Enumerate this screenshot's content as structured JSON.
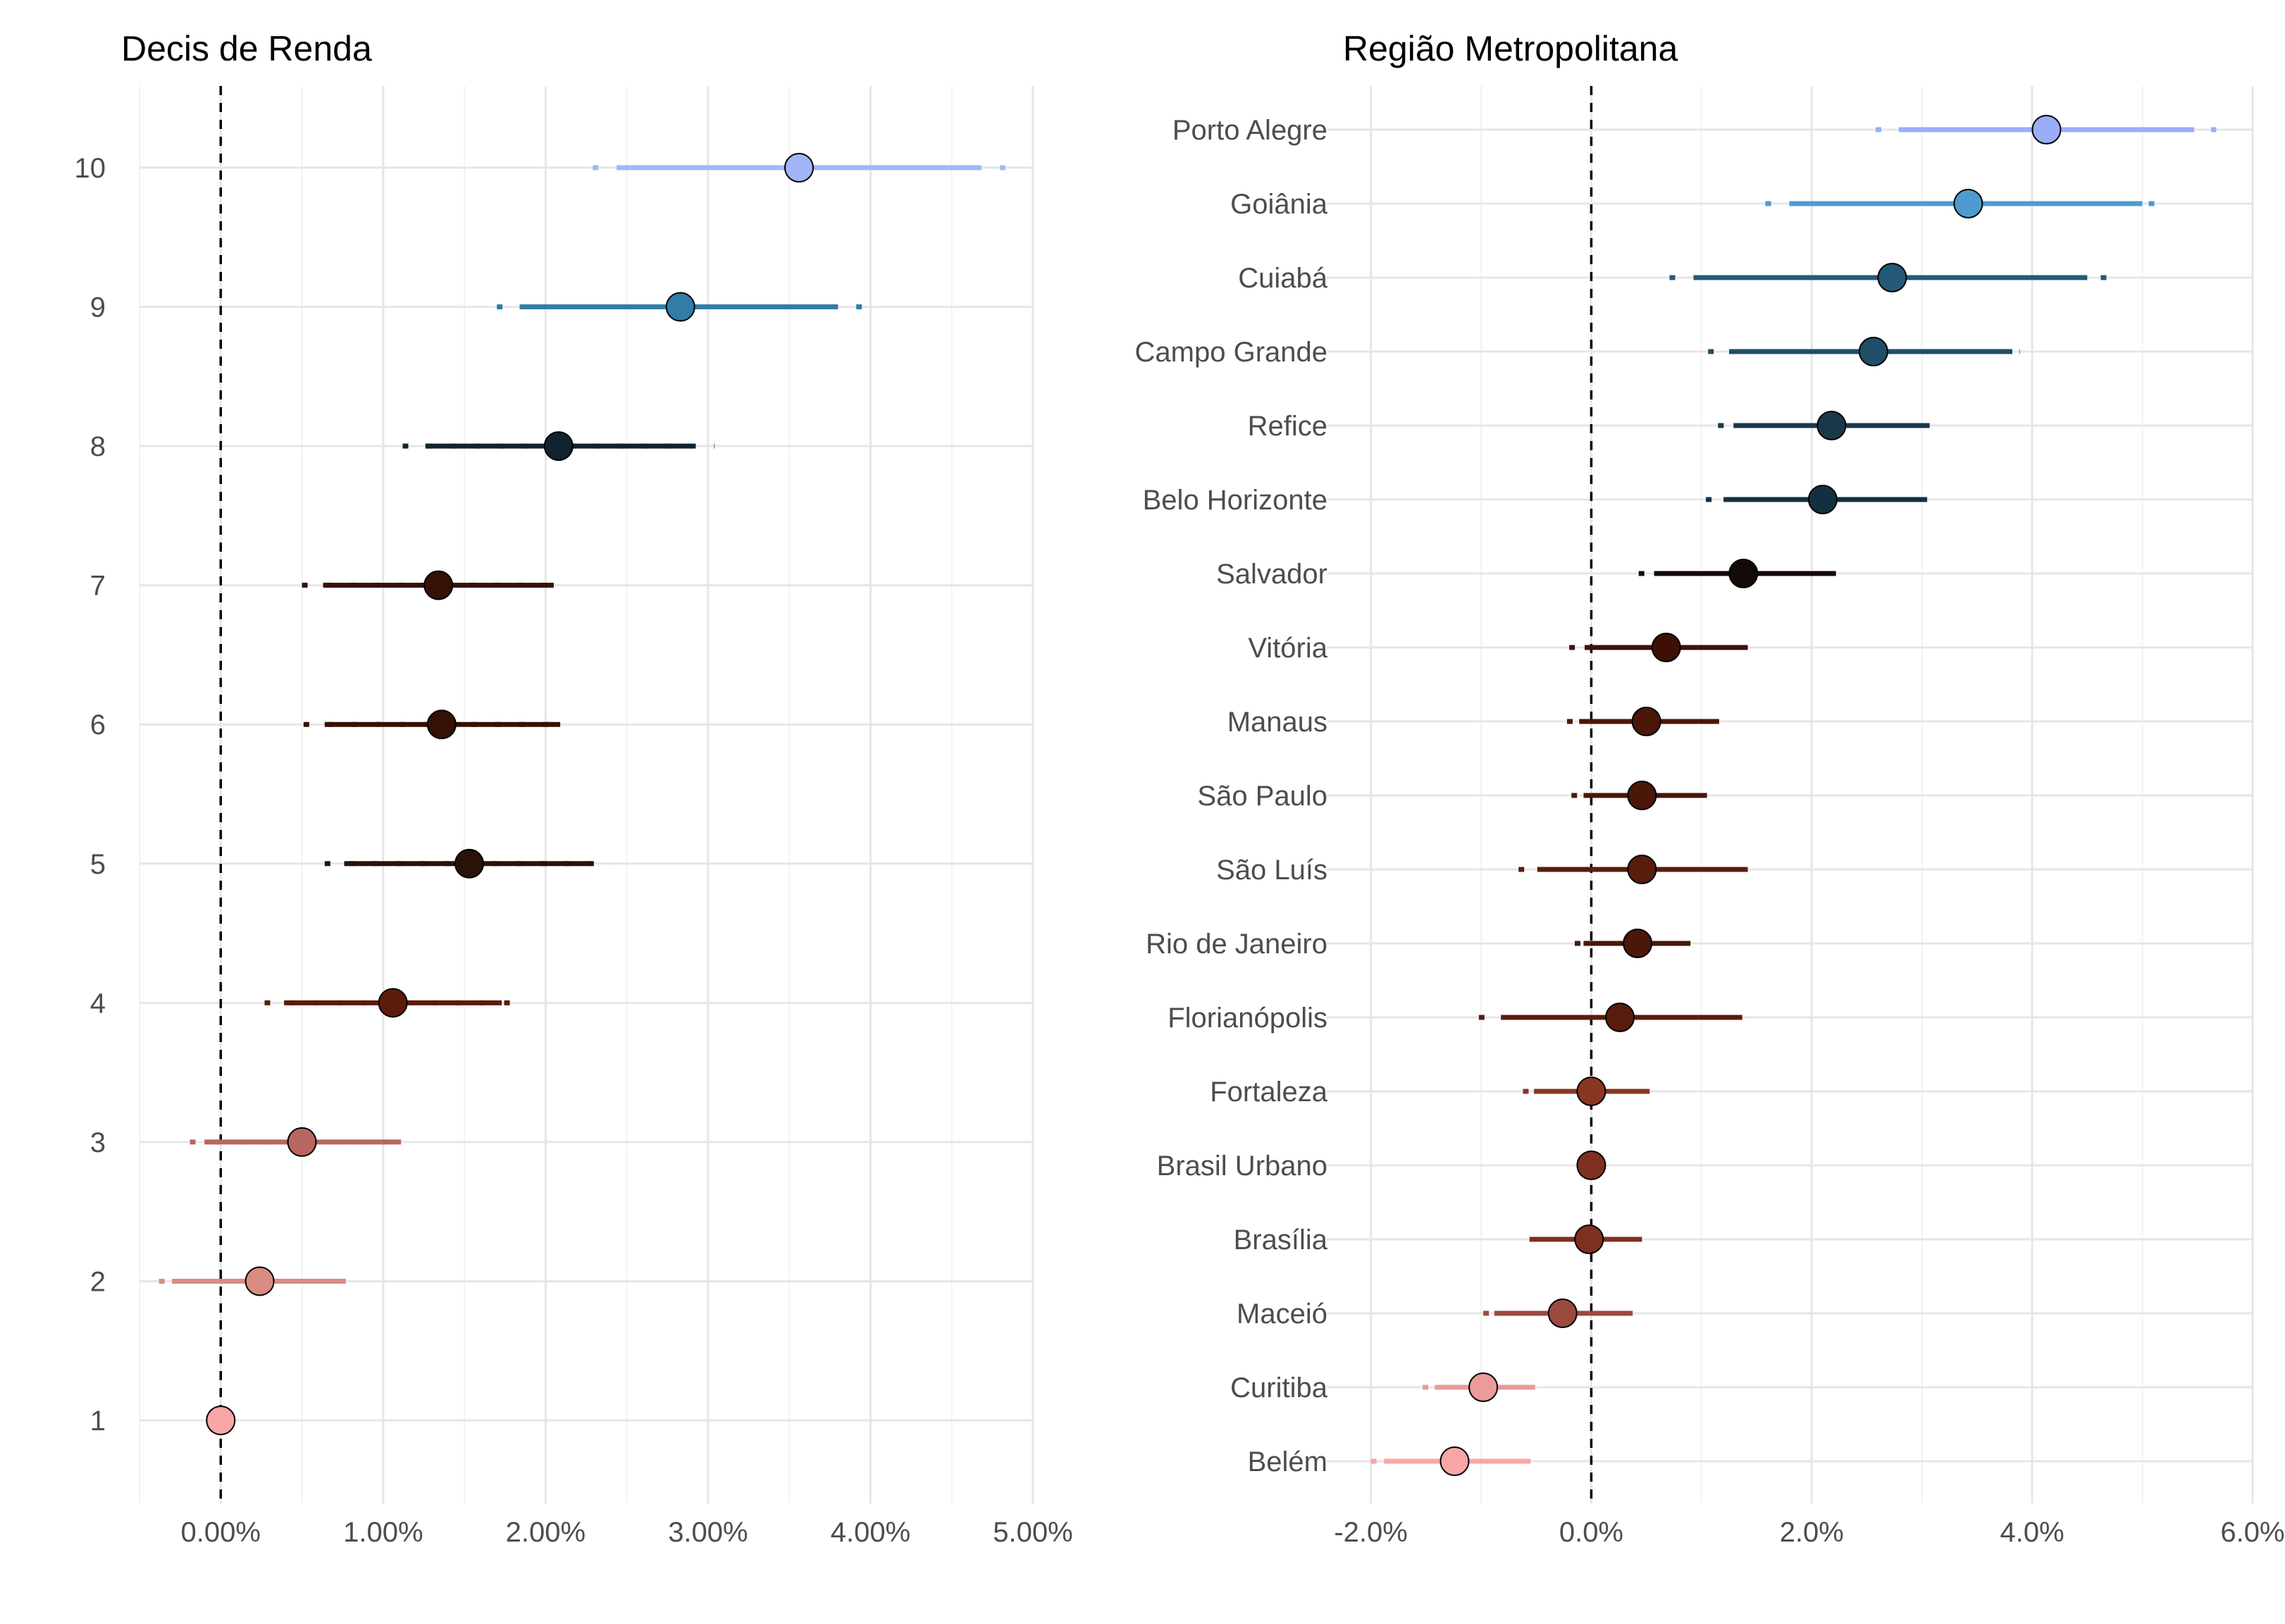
{
  "chart_data": [
    {
      "type": "dot-interval",
      "title": "Decis de Renda",
      "xlabel": "",
      "ylabel": "",
      "xlim": [
        -0.5,
        5.0
      ],
      "x_ticks": [
        0,
        1,
        2,
        3,
        4,
        5
      ],
      "x_tick_labels": [
        "0.00%",
        "1.00%",
        "2.00%",
        "3.00%",
        "4.00%",
        "5.00%"
      ],
      "reference_line": 0,
      "grid": true,
      "legend": "none",
      "categories": [
        "1",
        "2",
        "3",
        "4",
        "5",
        "6",
        "7",
        "8",
        "9",
        "10"
      ],
      "estimates": [
        0.0,
        0.24,
        0.5,
        1.06,
        1.53,
        1.36,
        1.34,
        2.08,
        2.83,
        3.56
      ],
      "ci95": [
        [
          0.0,
          0.0
        ],
        [
          -0.38,
          0.77
        ],
        [
          -0.19,
          1.11
        ],
        [
          0.27,
          1.86
        ],
        [
          0.64,
          2.41
        ],
        [
          0.51,
          2.13
        ],
        [
          0.5,
          2.11
        ],
        [
          1.12,
          3.04
        ],
        [
          1.7,
          3.96
        ],
        [
          2.29,
          4.83
        ]
      ],
      "ci90": [
        [
          0.0,
          0.0
        ],
        [
          -0.3,
          0.77
        ],
        [
          -0.1,
          1.11
        ],
        [
          0.39,
          1.73
        ],
        [
          0.76,
          2.28
        ],
        [
          0.64,
          2.09
        ],
        [
          0.63,
          2.05
        ],
        [
          1.26,
          2.9
        ],
        [
          1.84,
          3.8
        ],
        [
          2.44,
          4.66
        ]
      ],
      "colors": [
        "#f8a6a6",
        "#d98c82",
        "#b86660",
        "#5c1a0a",
        "#2a1109",
        "#351005",
        "#351005",
        "#0f2330",
        "#2f7da8",
        "#a2b6f7"
      ]
    },
    {
      "type": "dot-interval",
      "title": "Região Metropolitana",
      "xlabel": "",
      "ylabel": "",
      "xlim": [
        -2.4,
        6.0
      ],
      "x_ticks": [
        -2,
        0,
        2,
        4,
        6
      ],
      "x_tick_labels": [
        "-2.0%",
        "0.0%",
        "2.0%",
        "4.0%",
        "6.0%"
      ],
      "reference_line": 0,
      "grid": true,
      "legend": "none",
      "categories": [
        "Belém",
        "Curitiba",
        "Maceió",
        "Brasília",
        "Brasil Urbano",
        "Fortaleza",
        "Florianópolis",
        "Rio de Janeiro",
        "São Luís",
        "São Paulo",
        "Manaus",
        "Vitória",
        "Salvador",
        "Belo Horizonte",
        "Refice",
        "Campo Grande",
        "Cuiabá",
        "Goiânia",
        "Porto Alegre"
      ],
      "estimates": [
        -1.24,
        -0.98,
        -0.26,
        -0.02,
        0.0,
        0.0,
        0.26,
        0.42,
        0.46,
        0.46,
        0.5,
        0.68,
        1.38,
        2.1,
        2.18,
        2.56,
        2.73,
        3.42,
        4.13
      ],
      "ci95": [
        [
          -2.0,
          -0.55
        ],
        [
          -1.53,
          -0.51
        ],
        [
          -0.98,
          0.44
        ],
        [
          -0.56,
          0.46
        ],
        [
          0.0,
          0.0
        ],
        [
          -0.62,
          0.59
        ],
        [
          -1.02,
          1.37
        ],
        [
          -0.15,
          0.9
        ],
        [
          -0.66,
          1.48
        ],
        [
          -0.18,
          1.05
        ],
        [
          -0.22,
          1.2
        ],
        [
          -0.2,
          1.48
        ],
        [
          0.43,
          2.33
        ],
        [
          1.04,
          3.16
        ],
        [
          1.15,
          3.07
        ],
        [
          1.06,
          3.89
        ],
        [
          0.71,
          4.72
        ],
        [
          1.58,
          5.16
        ],
        [
          2.58,
          5.67
        ]
      ],
      "ci90": [
        [
          -1.88,
          -0.55
        ],
        [
          -1.42,
          -0.51
        ],
        [
          -0.88,
          0.35
        ],
        [
          -0.56,
          0.46
        ],
        [
          0.0,
          0.0
        ],
        [
          -0.52,
          0.53
        ],
        [
          -0.82,
          1.37
        ],
        [
          -0.07,
          0.9
        ],
        [
          -0.49,
          1.42
        ],
        [
          -0.07,
          1.05
        ],
        [
          -0.11,
          1.16
        ],
        [
          -0.06,
          1.42
        ],
        [
          0.57,
          2.19
        ],
        [
          1.2,
          3.0
        ],
        [
          1.29,
          3.07
        ],
        [
          1.25,
          3.82
        ],
        [
          0.96,
          4.5
        ],
        [
          1.81,
          5.0
        ],
        [
          2.79,
          5.47
        ]
      ],
      "colors": [
        "#f8a6a6",
        "#ec9a9a",
        "#9c4a3e",
        "#7e3020",
        "#7e3020",
        "#883722",
        "#5a1c0c",
        "#4a1709",
        "#5a1c0c",
        "#4a1709",
        "#4a1709",
        "#3e1005",
        "#140a07",
        "#142f40",
        "#19394a",
        "#1f4e68",
        "#245a78",
        "#4e9bd1",
        "#9aaef7"
      ]
    }
  ]
}
